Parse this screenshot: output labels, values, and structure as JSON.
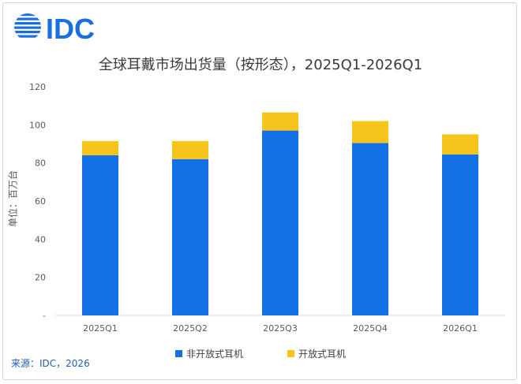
{
  "logo": {
    "icon": "idc-globe-icon",
    "text": "IDC",
    "color": "#1a6fe0"
  },
  "chart_data": {
    "type": "bar",
    "stacked": true,
    "title": "全球耳戴市场出货量（按形态），2025Q1-2026Q1",
    "ylabel": "单位：百万台",
    "xlabel": "",
    "categories": [
      "2025Q1",
      "2025Q2",
      "2025Q3",
      "2025Q4",
      "2026Q1"
    ],
    "ylim": [
      0,
      120
    ],
    "yticks": [
      0,
      20,
      40,
      60,
      80,
      100,
      120
    ],
    "yticklabels": [
      "-",
      "20",
      "40",
      "60",
      "80",
      "100",
      "120"
    ],
    "grid": false,
    "legend": "bottom",
    "series": [
      {
        "name": "非开放式耳机",
        "color": "#1470e6",
        "values": [
          84,
          82,
          97,
          90.5,
          84.5
        ]
      },
      {
        "name": "开放式耳机",
        "color": "#f7c41c",
        "values": [
          7.5,
          9.5,
          9.5,
          11.5,
          10.5
        ]
      }
    ]
  },
  "source": "来源：IDC，2026"
}
